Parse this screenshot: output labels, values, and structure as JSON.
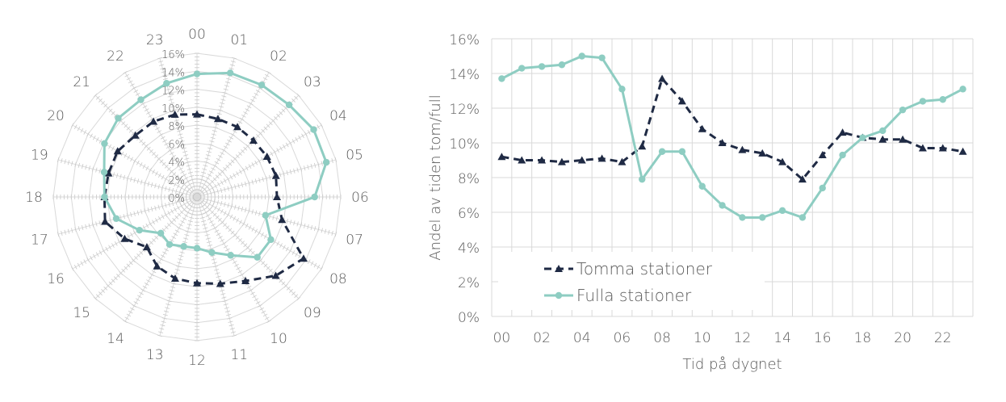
{
  "colors": {
    "empty": "#1f2a44",
    "full": "#8ecdc2",
    "grid": "#d9d9d9",
    "text": "#595959"
  },
  "chart_data": [
    {
      "type": "radar",
      "categories": [
        "00",
        "01",
        "02",
        "03",
        "04",
        "05",
        "06",
        "07",
        "08",
        "09",
        "10",
        "11",
        "12",
        "13",
        "14",
        "15",
        "16",
        "17",
        "18",
        "19",
        "20",
        "21",
        "22",
        "23"
      ],
      "r_ticks": [
        "0%",
        "2%",
        "4%",
        "6%",
        "8%",
        "10%",
        "12%",
        "14%",
        "16%"
      ],
      "rlim": [
        0,
        16
      ],
      "series": [
        {
          "values": [
            9.2,
            9.0,
            9.0,
            8.9,
            9.0,
            9.1,
            8.9,
            9.8,
            13.7,
            12.4,
            10.8,
            10.0,
            9.6,
            9.4,
            8.9,
            7.9,
            9.3,
            10.6,
            10.3,
            10.2,
            10.2,
            9.7,
            9.7,
            9.5
          ]
        },
        {
          "values": [
            13.7,
            14.3,
            14.4,
            14.5,
            15.0,
            14.9,
            13.1,
            7.9,
            9.5,
            9.5,
            7.5,
            6.4,
            5.7,
            5.7,
            6.1,
            5.7,
            7.4,
            9.3,
            10.3,
            10.7,
            11.9,
            12.4,
            12.5,
            13.1
          ]
        }
      ]
    },
    {
      "type": "line",
      "x": [
        "00",
        "01",
        "02",
        "03",
        "04",
        "05",
        "06",
        "07",
        "08",
        "09",
        "10",
        "11",
        "12",
        "13",
        "14",
        "15",
        "16",
        "17",
        "18",
        "19",
        "20",
        "21",
        "22",
        "23"
      ],
      "x_ticks": [
        "00",
        "02",
        "04",
        "06",
        "08",
        "10",
        "12",
        "14",
        "16",
        "18",
        "20",
        "22"
      ],
      "y_ticks": [
        "0%",
        "2%",
        "4%",
        "6%",
        "8%",
        "10%",
        "12%",
        "14%",
        "16%"
      ],
      "ylim": [
        0,
        16
      ],
      "xlabel": "Tid på dygnet",
      "ylabel": "Andel av tiden tom/full",
      "legend_position": "lower-left",
      "series": [
        {
          "name": "Tomma stationer",
          "values": [
            9.2,
            9.0,
            9.0,
            8.9,
            9.0,
            9.1,
            8.9,
            9.8,
            13.7,
            12.4,
            10.8,
            10.0,
            9.6,
            9.4,
            8.9,
            7.9,
            9.3,
            10.6,
            10.3,
            10.2,
            10.2,
            9.7,
            9.7,
            9.5
          ]
        },
        {
          "name": "Fulla stationer",
          "values": [
            13.7,
            14.3,
            14.4,
            14.5,
            15.0,
            14.9,
            13.1,
            7.9,
            9.5,
            9.5,
            7.5,
            6.4,
            5.7,
            5.7,
            6.1,
            5.7,
            7.4,
            9.3,
            10.3,
            10.7,
            11.9,
            12.4,
            12.5,
            13.1
          ]
        }
      ]
    }
  ]
}
